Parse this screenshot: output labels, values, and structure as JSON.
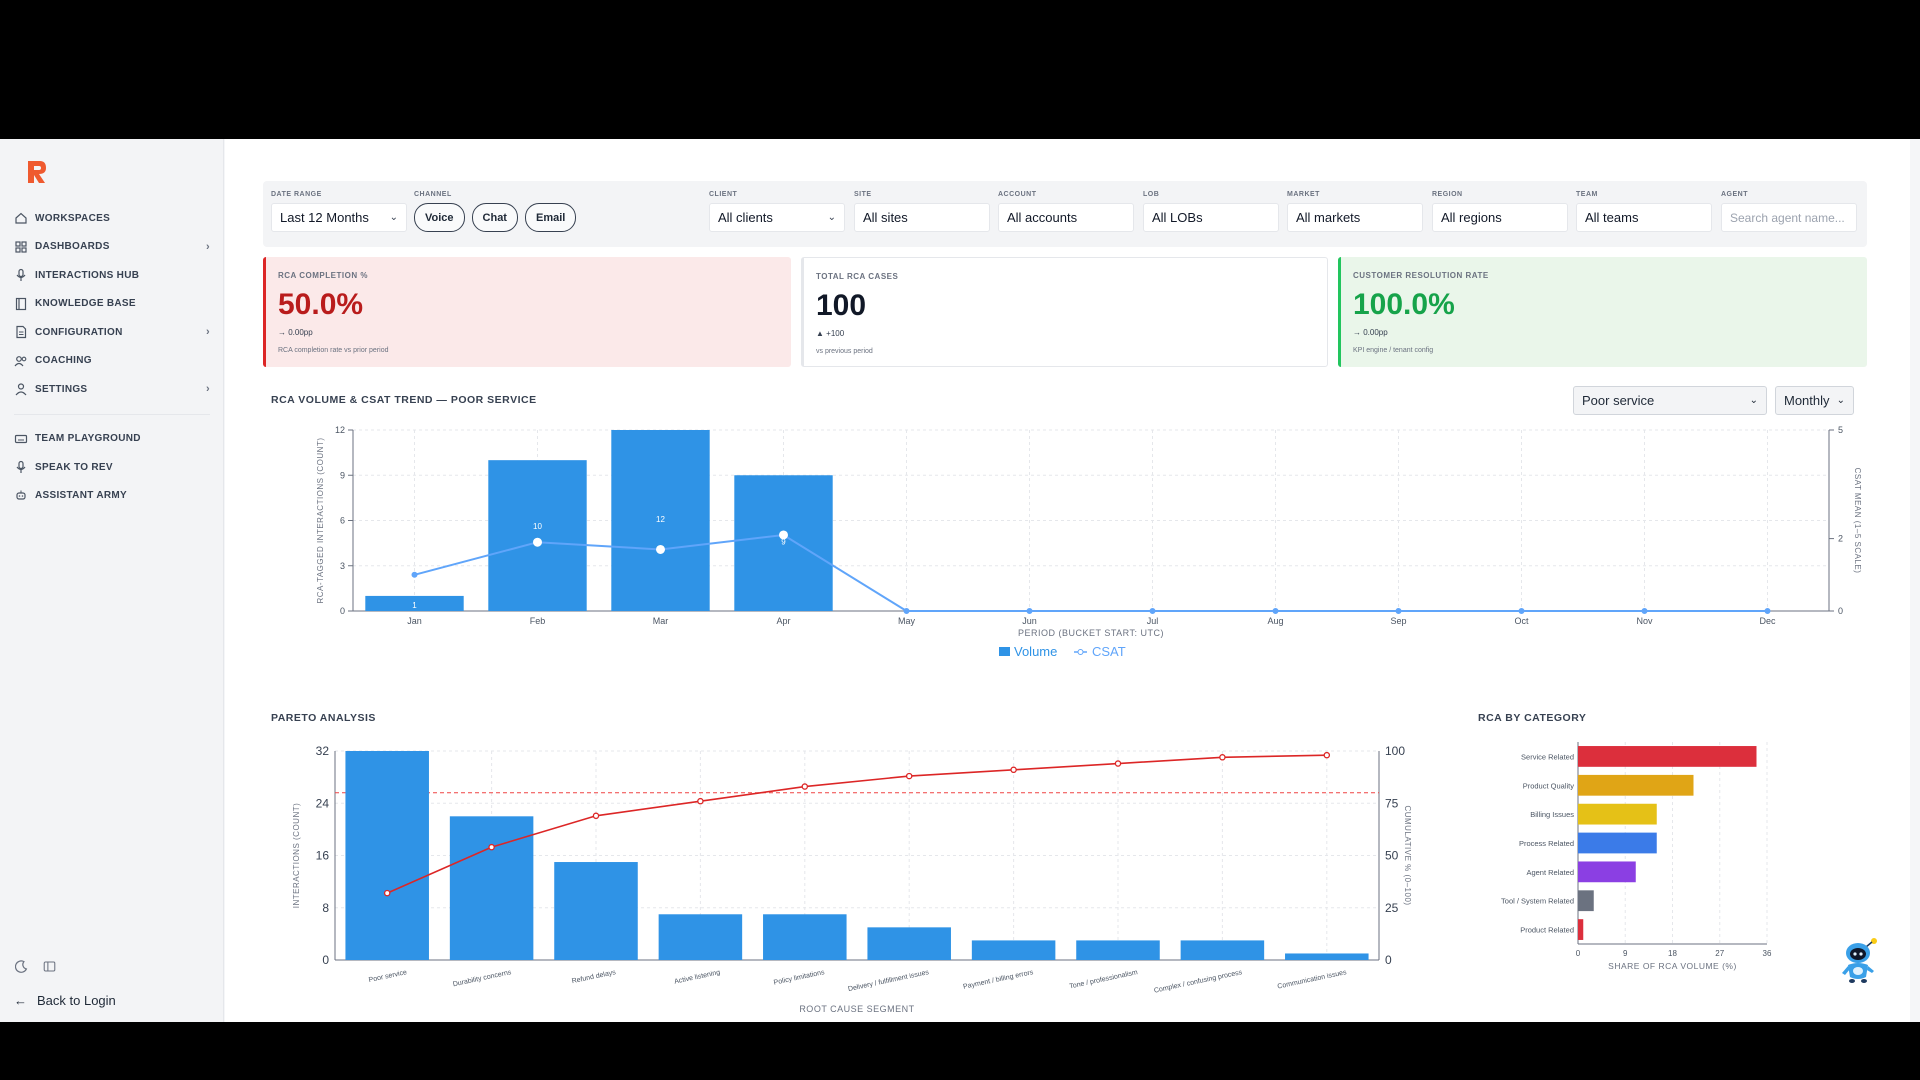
{
  "sidebar": {
    "items": [
      {
        "label": "WORKSPACES",
        "icon": "home-icon",
        "chevron": false
      },
      {
        "label": "DASHBOARDS",
        "icon": "grid-icon",
        "chevron": true
      },
      {
        "label": "INTERACTIONS HUB",
        "icon": "mic-icon",
        "chevron": false
      },
      {
        "label": "KNOWLEDGE BASE",
        "icon": "book-icon",
        "chevron": false
      },
      {
        "label": "CONFIGURATION",
        "icon": "document-icon",
        "chevron": true
      },
      {
        "label": "COACHING",
        "icon": "users-icon",
        "chevron": false
      },
      {
        "label": "SETTINGS",
        "icon": "user-icon",
        "chevron": true
      }
    ],
    "secondary_items": [
      {
        "label": "TEAM PLAYGROUND",
        "icon": "keyboard-icon"
      },
      {
        "label": "SPEAK TO REV",
        "icon": "mic-icon"
      },
      {
        "label": "ASSISTANT ARMY",
        "icon": "robot-icon"
      }
    ],
    "back_label": "Back to Login"
  },
  "filters": {
    "date_range": {
      "label": "DATE RANGE",
      "value": "Last 12 Months"
    },
    "channel": {
      "label": "CHANNEL",
      "options": [
        "Voice",
        "Chat",
        "Email"
      ]
    },
    "client": {
      "label": "CLIENT",
      "value": "All clients"
    },
    "site": {
      "label": "SITE",
      "value": "All sites"
    },
    "account": {
      "label": "ACCOUNT",
      "value": "All accounts"
    },
    "lob": {
      "label": "LOB",
      "value": "All LOBs"
    },
    "market": {
      "label": "MARKET",
      "value": "All markets"
    },
    "region": {
      "label": "REGION",
      "value": "All regions"
    },
    "team": {
      "label": "TEAM",
      "value": "All teams"
    },
    "agent": {
      "label": "AGENT",
      "placeholder": "Search agent name..."
    }
  },
  "kpis": [
    {
      "label": "RCA COMPLETION %",
      "value": "50.0%",
      "delta": "→ 0.00pp",
      "sub": "RCA completion rate vs prior period",
      "color": "#b91c1c",
      "bg": "#fbe9e9",
      "border": "#dc2626"
    },
    {
      "label": "TOTAL RCA CASES",
      "value": "100",
      "delta": "▲ +100",
      "sub": "vs previous period",
      "color": "#111827",
      "bg": "#ffffff",
      "border": "#e5e7eb"
    },
    {
      "label": "CUSTOMER RESOLUTION RATE",
      "value": "100.0%",
      "delta": "→ 0.00pp",
      "sub": "KPI engine / tenant config",
      "color": "#16a34a",
      "bg": "#eaf6ea",
      "border": "#22c55e"
    }
  ],
  "trend": {
    "title": "RCA VOLUME & CSAT TREND — POOR SERVICE",
    "segment_select": "Poor service",
    "period_select": "Monthly",
    "ylabel_left": "RCA-TAGGED INTERACTIONS (COUNT)",
    "ylabel_right": "CSAT MEAN (1–5 SCALE)",
    "xlabel": "PERIOD (BUCKET START: UTC)",
    "legend": [
      "Volume",
      "CSAT"
    ]
  },
  "pareto": {
    "title": "PARETO ANALYSIS",
    "ylabel_left": "INTERACTIONS (COUNT)",
    "ylabel_right": "CUMULATIVE % (0–100)",
    "xlabel": "ROOT CAUSE SEGMENT"
  },
  "category": {
    "title": "RCA BY CATEGORY",
    "xlabel": "SHARE OF RCA VOLUME (%)"
  },
  "chart_data": [
    {
      "type": "bar",
      "title": "RCA VOLUME & CSAT TREND — POOR SERVICE",
      "categories": [
        "Jan",
        "Feb",
        "Mar",
        "Apr",
        "May",
        "Jun",
        "Jul",
        "Aug",
        "Sep",
        "Oct",
        "Nov",
        "Dec"
      ],
      "series": [
        {
          "name": "Volume",
          "type": "bar",
          "axis": "left",
          "values": [
            1,
            10,
            12,
            9,
            0,
            0,
            0,
            0,
            0,
            0,
            0,
            0
          ],
          "data_labels": [
            "1",
            "10",
            "12",
            "9"
          ]
        },
        {
          "name": "CSAT",
          "type": "line",
          "axis": "right",
          "values": [
            1,
            1.9,
            1.7,
            2.1,
            0,
            0,
            0,
            0,
            0,
            0,
            0,
            0
          ]
        }
      ],
      "ylim_left": [
        0,
        12
      ],
      "yticks_left": [
        0,
        3,
        6,
        9,
        12
      ],
      "ylim_right": [
        0,
        5
      ],
      "yticks_right": [
        0,
        2,
        5
      ],
      "xlabel": "PERIOD (BUCKET START: UTC)",
      "ylabel": "RCA-TAGGED INTERACTIONS (COUNT)",
      "ylabel_right": "CSAT MEAN (1–5 SCALE)",
      "colors": {
        "bar": "#2f93e6",
        "line": "#60a5fa"
      },
      "grid": true,
      "legend": "bottom"
    },
    {
      "type": "bar",
      "title": "PARETO ANALYSIS",
      "categories": [
        "Poor service",
        "Durability concerns",
        "Refund delays",
        "Active listening",
        "Policy limitations",
        "Delivery / fulfillment issues",
        "Payment / billing errors",
        "Tone / professionalism",
        "Complex / confusing process",
        "Communication issues"
      ],
      "series": [
        {
          "name": "Interactions",
          "type": "bar",
          "axis": "left",
          "values": [
            32,
            22,
            15,
            7,
            7,
            5,
            3,
            3,
            3,
            1
          ]
        },
        {
          "name": "Cumulative %",
          "type": "line",
          "axis": "right",
          "values": [
            32,
            54,
            69,
            76,
            83,
            88,
            91,
            94,
            97,
            98
          ]
        }
      ],
      "ylim_left": [
        0,
        32
      ],
      "yticks_left": [
        0,
        8,
        16,
        24,
        32
      ],
      "ylim_right": [
        0,
        100
      ],
      "yticks_right": [
        0,
        25,
        50,
        75,
        100
      ],
      "threshold_right": 80,
      "xlabel": "ROOT CAUSE SEGMENT",
      "ylabel": "INTERACTIONS (COUNT)",
      "ylabel_right": "CUMULATIVE % (0–100)",
      "colors": {
        "bar": "#2f93e6",
        "line": "#dc2626"
      },
      "grid": true
    },
    {
      "type": "bar",
      "orientation": "horizontal",
      "title": "RCA BY CATEGORY",
      "categories": [
        "Service Related",
        "Product Quality",
        "Billing Issues",
        "Process Related",
        "Agent Related",
        "Tool / System Related",
        "Product Related"
      ],
      "values": [
        34,
        22,
        15,
        15,
        11,
        3,
        1
      ],
      "colors": [
        "#dc2f3c",
        "#e0a516",
        "#e5c117",
        "#3b7be8",
        "#8b3fe3",
        "#6b7280",
        "#dc2f3c"
      ],
      "xlim": [
        0,
        36
      ],
      "xticks": [
        0,
        9,
        18,
        27,
        36
      ],
      "xlabel": "SHARE OF RCA VOLUME (%)",
      "grid": true
    }
  ]
}
